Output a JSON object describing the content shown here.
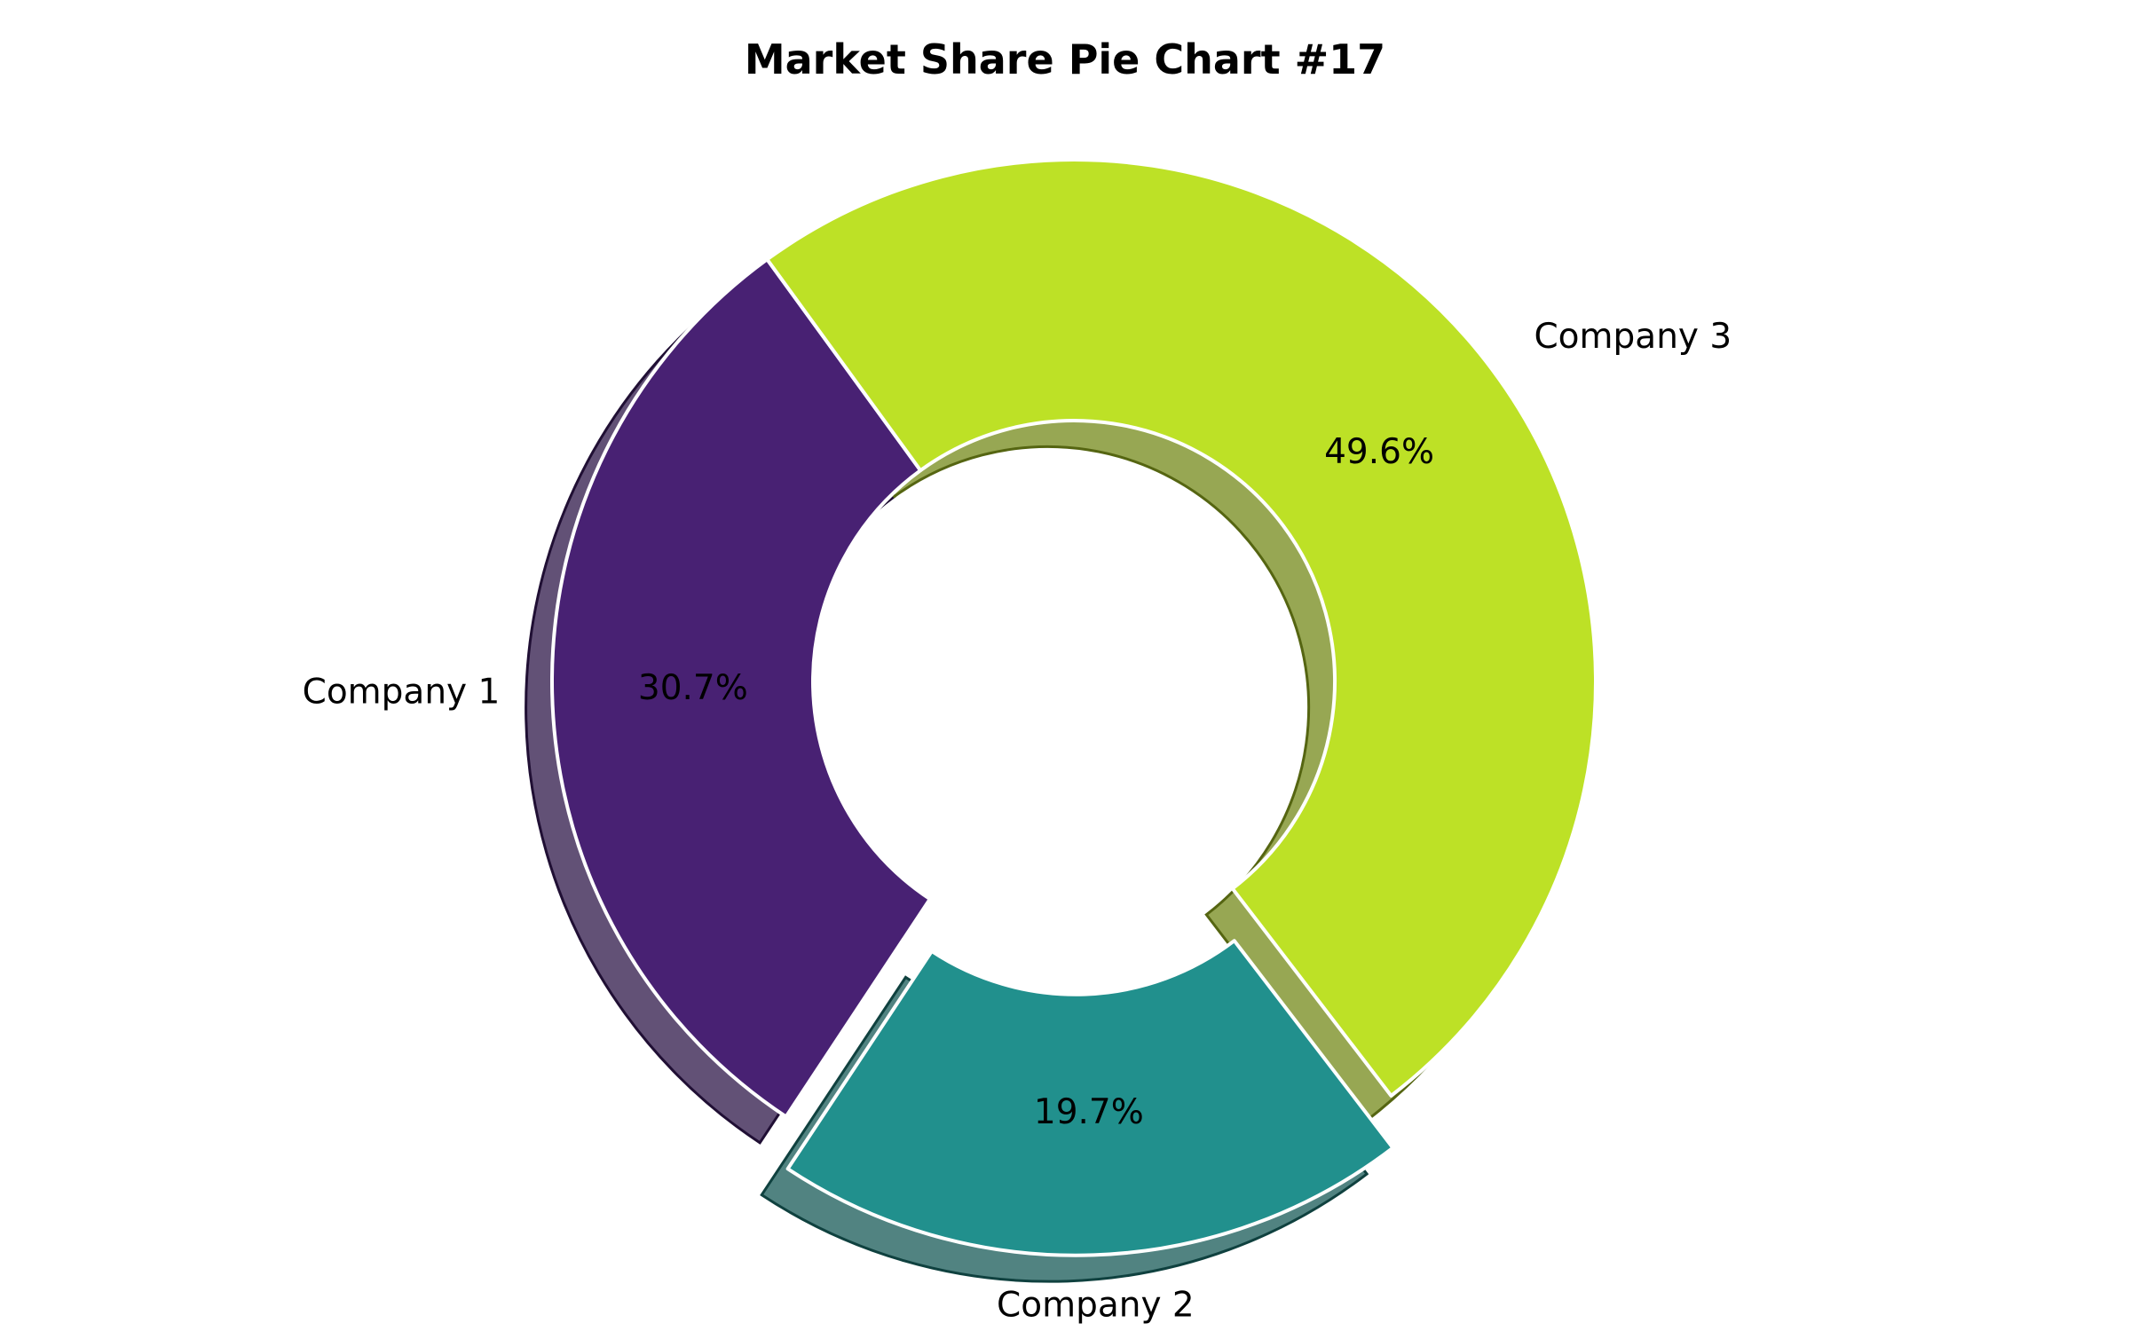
{
  "chart_data": {
    "type": "pie",
    "title": "Market Share Pie Chart #17",
    "donut": true,
    "shadow": true,
    "categories": [
      "Company 1",
      "Company 2",
      "Company 3"
    ],
    "values": [
      30.7,
      19.7,
      49.6
    ],
    "value_labels": [
      "30.7%",
      "19.7%",
      "49.6%"
    ],
    "exploded": [
      false,
      true,
      false
    ],
    "colors": [
      "#482173",
      "#21908d",
      "#bde126"
    ]
  }
}
